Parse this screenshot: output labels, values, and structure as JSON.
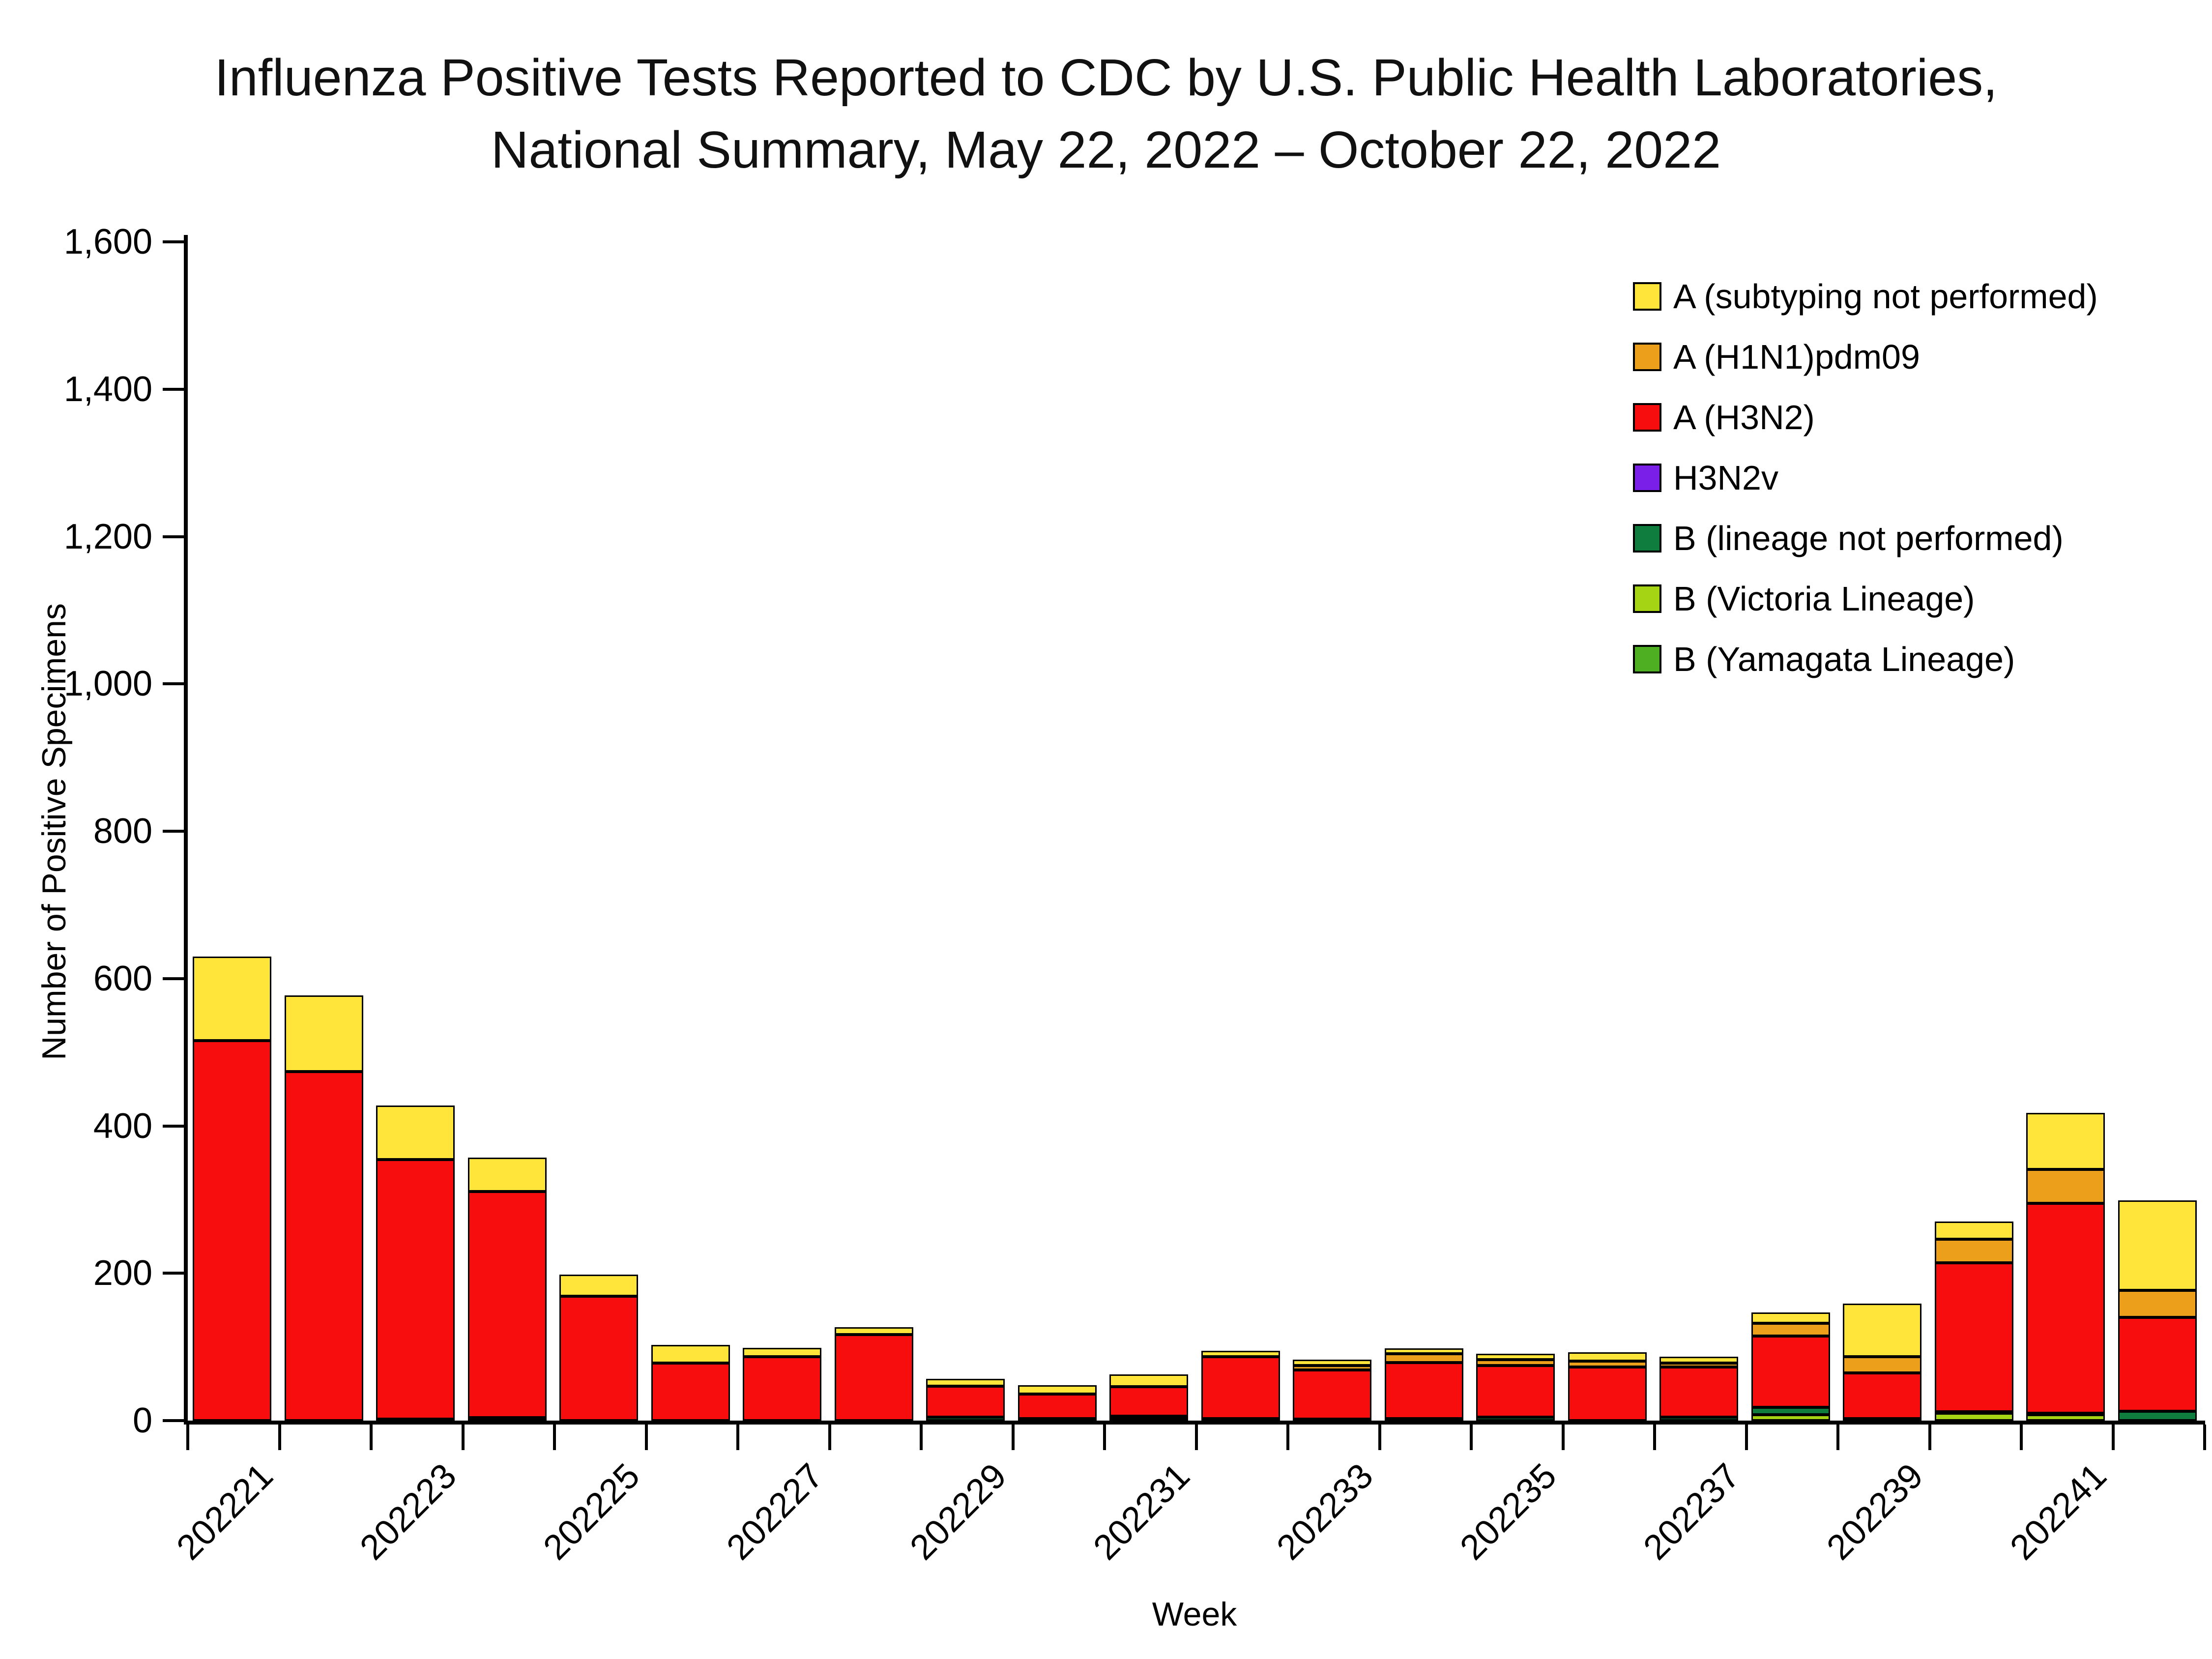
{
  "title": {
    "line1": "Influenza Positive Tests Reported to CDC by U.S. Public Health Laboratories,",
    "line2": "National Summary, May 22, 2022 – October 22, 2022"
  },
  "y_axis": {
    "label": "Number of Positive Specimens",
    "tick_labels": [
      "0",
      "200",
      "400",
      "600",
      "800",
      "1,000",
      "1,200",
      "1,400",
      "1,600"
    ],
    "tick_values": [
      0,
      200,
      400,
      600,
      800,
      1000,
      1200,
      1400,
      1600
    ]
  },
  "x_axis": {
    "label": "Week",
    "tick_labels": [
      "202221",
      "202223",
      "202225",
      "202227",
      "202229",
      "202231",
      "202233",
      "202235",
      "202237",
      "202239",
      "202241"
    ],
    "labeled_bar_indexes": [
      0,
      2,
      4,
      6,
      8,
      10,
      12,
      14,
      16,
      18,
      20
    ]
  },
  "legend": [
    {
      "label": "A (subtyping not performed)",
      "color": "#FFE53A"
    },
    {
      "label": "A (H1N1)pdm09",
      "color": "#EC9F1B"
    },
    {
      "label": "A (H3N2)",
      "color": "#F70D0D"
    },
    {
      "label": "H3N2v",
      "color": "#7A1FE8"
    },
    {
      "label": "B (lineage not performed)",
      "color": "#0E7D3D"
    },
    {
      "label": "B (Victoria Lineage)",
      "color": "#A5D414"
    },
    {
      "label": "B (Yamagata Lineage)",
      "color": "#4FAF23"
    }
  ],
  "chart_data": {
    "type": "bar",
    "stacked": true,
    "title": "Influenza Positive Tests Reported to CDC by U.S. Public Health Laboratories, National Summary, May 22, 2022 – October 22, 2022",
    "xlabel": "Week",
    "ylabel": "Number of Positive Specimens",
    "ylim": [
      0,
      1600
    ],
    "grid": false,
    "legend_position": "top-right",
    "categories": [
      "202221",
      "202222",
      "202223",
      "202224",
      "202225",
      "202226",
      "202227",
      "202228",
      "202229",
      "202230",
      "202231",
      "202232",
      "202233",
      "202234",
      "202235",
      "202236",
      "202237",
      "202238",
      "202239",
      "202240",
      "202241",
      "202242"
    ],
    "series": [
      {
        "id": "b-yamagata",
        "name": "B (Yamagata Lineage)",
        "color": "#4FAF23",
        "values": [
          0,
          0,
          0,
          0,
          0,
          0,
          0,
          0,
          0,
          0,
          0,
          0,
          0,
          0,
          0,
          0,
          0,
          0,
          0,
          0,
          0,
          0
        ]
      },
      {
        "id": "b-victoria",
        "name": "B (Victoria Lineage)",
        "color": "#A5D414",
        "values": [
          0,
          0,
          0,
          0,
          0,
          0,
          0,
          0,
          0,
          0,
          0,
          0,
          0,
          3,
          0,
          0,
          0,
          8,
          0,
          10,
          8,
          0
        ]
      },
      {
        "id": "b-lineage-not-performed",
        "name": "B (lineage not performed)",
        "color": "#0E7D3D",
        "values": [
          0,
          0,
          2,
          4,
          0,
          0,
          0,
          0,
          5,
          3,
          2,
          3,
          2,
          0,
          5,
          0,
          5,
          10,
          3,
          2,
          2,
          13
        ]
      },
      {
        "id": "h3n2v",
        "name": "H3N2v",
        "color": "#7A1FE8",
        "values": [
          0,
          0,
          0,
          0,
          0,
          0,
          0,
          0,
          0,
          0,
          4,
          0,
          0,
          0,
          0,
          0,
          0,
          0,
          0,
          0,
          0,
          0
        ]
      },
      {
        "id": "a-h3n2",
        "name": "A (H3N2)",
        "color": "#F70D0D",
        "values": [
          516,
          474,
          352,
          307,
          169,
          78,
          87,
          117,
          42,
          33,
          40,
          84,
          67,
          76,
          70,
          73,
          68,
          97,
          62,
          202,
          285,
          127
        ]
      },
      {
        "id": "a-h1n1pdm09",
        "name": "A (H1N1)pdm09",
        "color": "#EC9F1B",
        "values": [
          0,
          0,
          0,
          0,
          0,
          0,
          0,
          0,
          0,
          0,
          0,
          0,
          6,
          12,
          8,
          8,
          5,
          17,
          22,
          32,
          46,
          37
        ]
      },
      {
        "id": "a-subtyping-not-performed",
        "name": "A (subtyping not performed)",
        "color": "#FFE53A",
        "values": [
          114,
          103,
          74,
          46,
          29,
          25,
          12,
          10,
          10,
          12,
          17,
          8,
          8,
          7,
          8,
          12,
          9,
          15,
          72,
          24,
          77,
          122
        ]
      }
    ],
    "totals": [
      630,
      577,
      428,
      357,
      198,
      103,
      99,
      127,
      57,
      48,
      63,
      95,
      83,
      98,
      91,
      93,
      87,
      147,
      159,
      270,
      418,
      299
    ]
  }
}
